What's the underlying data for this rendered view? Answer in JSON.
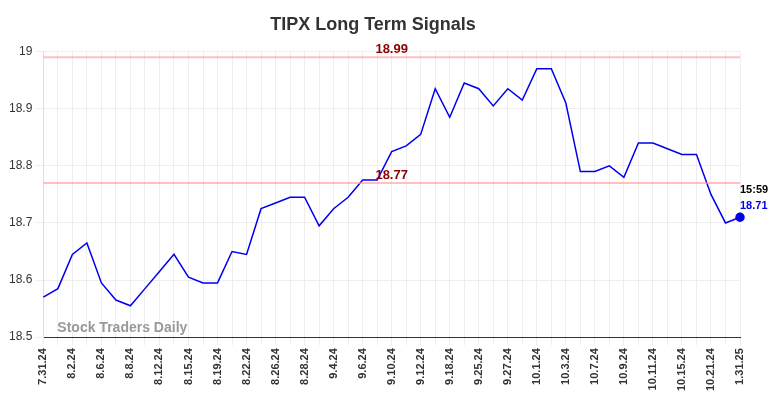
{
  "chart_data": {
    "type": "line",
    "title": "TIPX Long Term Signals",
    "categories": [
      "7.31.24",
      null,
      "8.2.24",
      null,
      "8.6.24",
      null,
      "8.8.24",
      null,
      "8.12.24",
      null,
      "8.15.24",
      null,
      "8.19.24",
      null,
      "8.22.24",
      null,
      "8.26.24",
      null,
      "8.28.24",
      null,
      "9.4.24",
      null,
      "9.6.24",
      null,
      "9.10.24",
      null,
      "9.12.24",
      null,
      "9.18.24",
      null,
      "9.25.24",
      null,
      "9.27.24",
      null,
      "10.1.24",
      null,
      "10.3.24",
      null,
      "10.7.24",
      null,
      "10.9.24",
      null,
      "10.11.24",
      null,
      "10.15.24",
      null,
      "10.21.24",
      null,
      "1.31.25"
    ],
    "values": [
      18.57,
      18.585,
      18.645,
      18.665,
      18.595,
      18.565,
      18.555,
      18.585,
      18.615,
      18.645,
      18.605,
      18.595,
      18.595,
      18.65,
      18.645,
      18.725,
      18.735,
      18.745,
      18.745,
      18.695,
      18.725,
      18.745,
      18.775,
      18.775,
      18.825,
      18.835,
      18.855,
      18.935,
      18.885,
      18.945,
      18.935,
      18.905,
      18.935,
      18.915,
      18.97,
      18.97,
      18.91,
      18.79,
      18.79,
      18.8,
      18.78,
      18.84,
      18.84,
      18.83,
      18.82,
      18.82,
      18.75,
      18.7,
      18.71
    ],
    "color": "#0000ee",
    "ylim": [
      18.5,
      19
    ],
    "yticks": [
      18.5,
      18.6,
      18.7,
      18.8,
      18.9,
      19
    ],
    "grid": true,
    "annotations": [
      {
        "type": "hline",
        "text": "18.99",
        "y": 18.99,
        "color": "#8b0000"
      },
      {
        "type": "hline",
        "text": "18.77",
        "y": 18.77,
        "color": "#8b0000"
      },
      {
        "type": "time",
        "text": "15:59",
        "color": "#000000"
      },
      {
        "type": "last",
        "text": "18.71",
        "y": 18.71,
        "color": "#0000ee"
      }
    ],
    "watermark": "Stock Traders Daily"
  }
}
